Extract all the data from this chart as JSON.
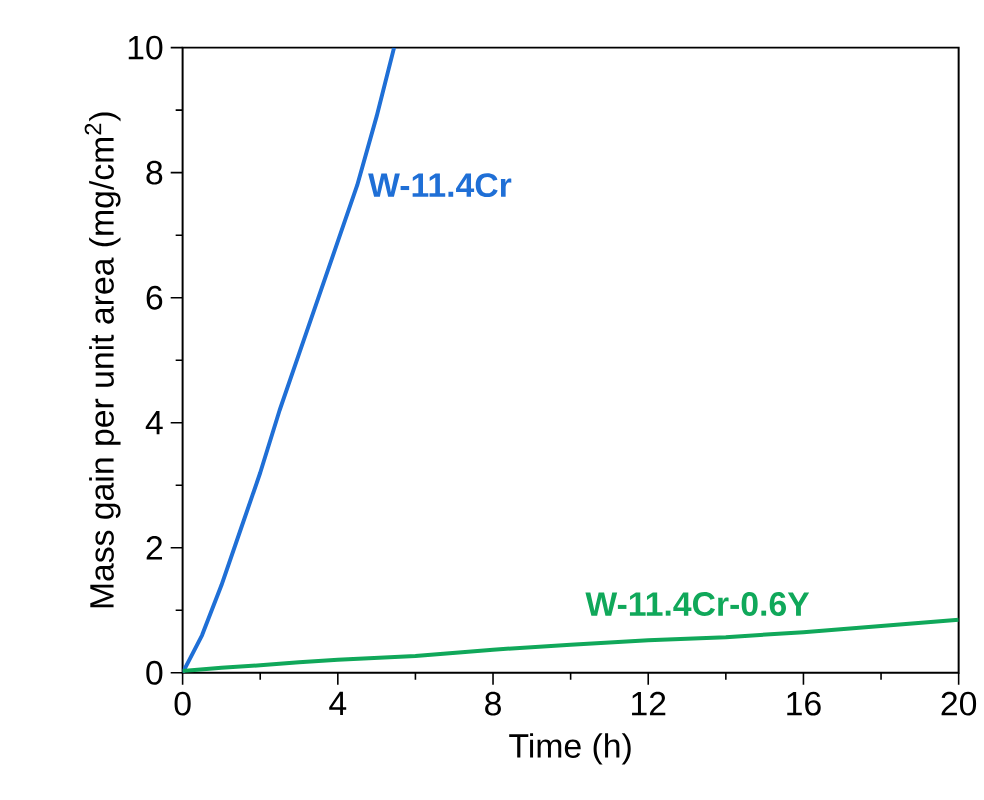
{
  "chart_data": {
    "type": "line",
    "xlabel": "Time (h)",
    "ylabel": "Mass gain per unit area (mg/cm$^{2}$)",
    "xlim": [
      0,
      20
    ],
    "ylim": [
      0,
      10
    ],
    "xticks": [
      0,
      {
        "value": 2,
        "label": null
      },
      4,
      {
        "value": 6,
        "label": null
      },
      8,
      {
        "value": 10,
        "label": null
      },
      12,
      {
        "value": 14,
        "label": null
      },
      16,
      {
        "value": 18,
        "label": null
      },
      20
    ],
    "yticks": [
      0,
      {
        "value": 1,
        "label": null
      },
      2,
      {
        "value": 3,
        "label": null
      },
      4,
      {
        "value": 5,
        "label": null
      },
      6,
      {
        "value": 7,
        "label": null
      },
      8,
      {
        "value": 9,
        "label": null
      },
      10
    ],
    "grid": false,
    "legend": false,
    "marker": "none",
    "line_style": "solid",
    "series": [
      {
        "name": "W-11.4Cr",
        "color": "#1f6fd6",
        "x": [
          0,
          0.5,
          1,
          1.5,
          2,
          2.5,
          3,
          3.5,
          4,
          4.5,
          5,
          5.45
        ],
        "values": [
          0,
          0.6,
          1.4,
          2.3,
          3.2,
          4.2,
          5.1,
          6.0,
          6.9,
          7.8,
          8.9,
          10
        ]
      },
      {
        "name": "W-11.4Cr-0.6Y",
        "color": "#10a85a",
        "x": [
          0,
          1,
          2,
          3,
          4,
          6,
          8,
          10,
          12,
          14,
          16,
          18,
          20
        ],
        "values": [
          0.03,
          0.08,
          0.12,
          0.17,
          0.21,
          0.27,
          0.37,
          0.45,
          0.52,
          0.57,
          0.65,
          0.75,
          0.85
        ]
      }
    ]
  }
}
